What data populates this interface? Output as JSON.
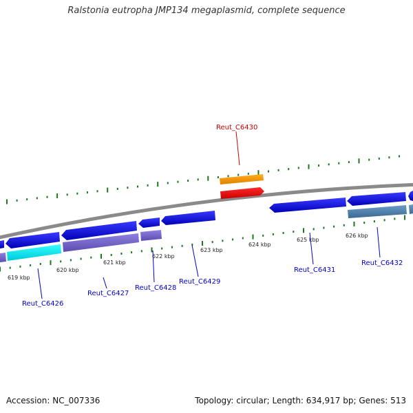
{
  "title": "Ralstonia eutropha JMP134 megaplasmid, complete sequence",
  "footer": {
    "accession": "Accession: NC_007336",
    "topology": "Topology: circular; Length: 634,917 bp; Genes: 513"
  },
  "scale": {
    "ticks": [
      "619 kbp",
      "620 kbp",
      "621 kbp",
      "622 kbp",
      "623 kbp",
      "624 kbp",
      "625 kbp",
      "626 kbp"
    ]
  },
  "genes": [
    {
      "id": "Reut_C6426",
      "color": "#0000cc"
    },
    {
      "id": "Reut_C6427",
      "color": "#0000cc"
    },
    {
      "id": "Reut_C6428",
      "color": "#0000cc"
    },
    {
      "id": "Reut_C6429",
      "color": "#0000cc"
    },
    {
      "id": "Reut_C6430",
      "color": "#cc0000"
    },
    {
      "id": "Reut_C6431",
      "color": "#0000cc"
    },
    {
      "id": "Reut_C6432",
      "color": "#0000cc"
    }
  ],
  "colors": {
    "backbone": "#888888",
    "ticks": "#1a7a1a",
    "cds_blue": "#1010e0",
    "cds_red": "#ee0000",
    "orange": "#ff9900",
    "cyan": "#00e0e8",
    "purple": "#7a6acc",
    "steelblue": "#5080b0"
  }
}
